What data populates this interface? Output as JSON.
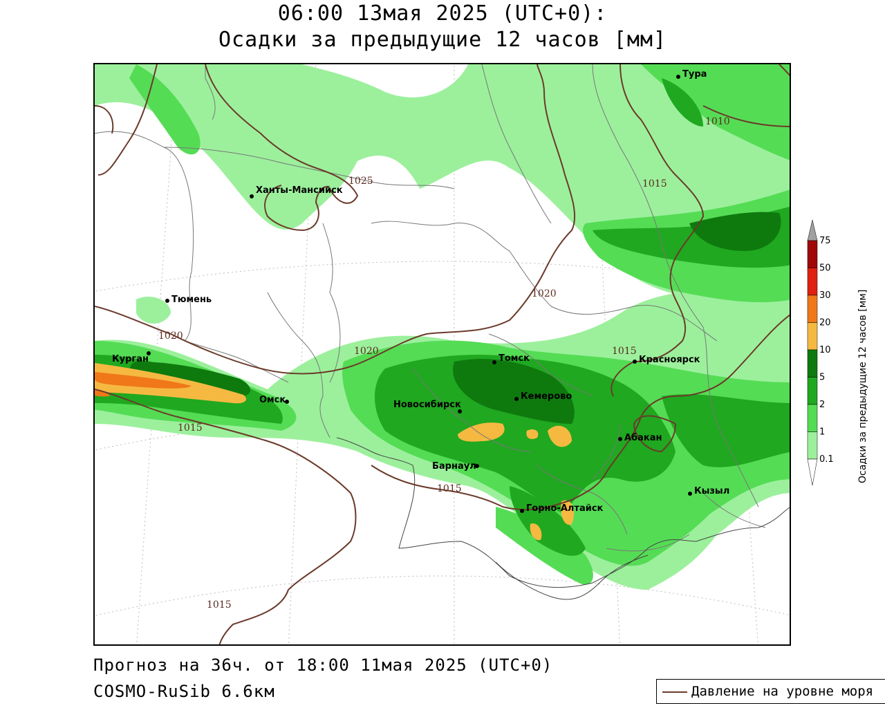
{
  "header": {
    "title_line1": "06:00 13мая 2025 (UTC+0):",
    "title_line2": "Осадки за предыдущие 12 часов [мм]"
  },
  "footer": {
    "forecast": "Прогноз на 36ч. от 18:00 11мая 2025 (UTC+0)",
    "model": "COSMO-RuSib 6.6км"
  },
  "pressure_legend": {
    "label": "Давление на уровне моря"
  },
  "colorbar": {
    "title": "Осадки за предыдущие 12 часов [мм]",
    "levels": [
      "0.1",
      "1",
      "2",
      "5",
      "10",
      "20",
      "30",
      "50",
      "75"
    ],
    "colors": [
      "#ffffff",
      "#9cf09c",
      "#55dc55",
      "#20a820",
      "#0e7a0e",
      "#f5b942",
      "#f07818",
      "#e02010",
      "#a00808",
      "#a0a0a0"
    ]
  },
  "cities": [
    {
      "name": "Тура"
    },
    {
      "name": "Ханты-Мансийск"
    },
    {
      "name": "Тюмень"
    },
    {
      "name": "Курган"
    },
    {
      "name": "Омск"
    },
    {
      "name": "Томск"
    },
    {
      "name": "Красноярск"
    },
    {
      "name": "Кемерово"
    },
    {
      "name": "Новосибирск"
    },
    {
      "name": "Абакан"
    },
    {
      "name": "Барнаул"
    },
    {
      "name": "Горно-Алтайск"
    },
    {
      "name": "Кызыл"
    }
  ],
  "isobar_labels": [
    "1010",
    "1015",
    "1025",
    "1020",
    "1020",
    "1020",
    "1015",
    "1015",
    "1015",
    "1015"
  ]
}
